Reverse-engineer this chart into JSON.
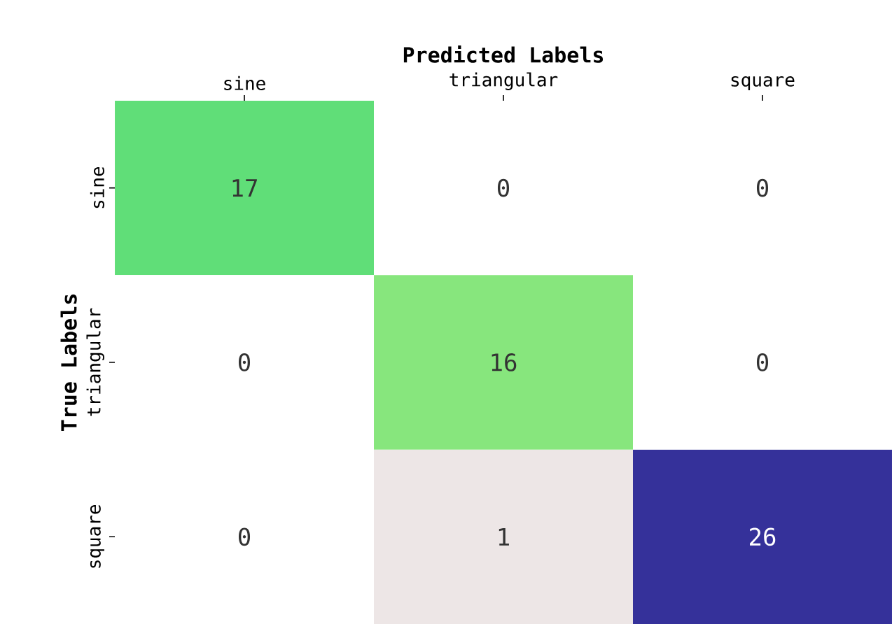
{
  "chart_data": {
    "type": "heatmap",
    "xlabel": "Predicted Labels",
    "ylabel": "True Labels",
    "categories": [
      "sine",
      "triangular",
      "square"
    ],
    "y_categories": [
      "sine",
      "triangular",
      "square"
    ],
    "cells": [
      [
        17,
        0,
        0
      ],
      [
        0,
        16,
        0
      ],
      [
        0,
        1,
        26
      ]
    ],
    "colors": [
      [
        "#60de78",
        "#ffffff",
        "#ffffff"
      ],
      [
        "#ffffff",
        "#87e67d",
        "#ffffff"
      ],
      [
        "#ffffff",
        "#ede6e6",
        "#35319a"
      ]
    ],
    "data_labels": true
  }
}
